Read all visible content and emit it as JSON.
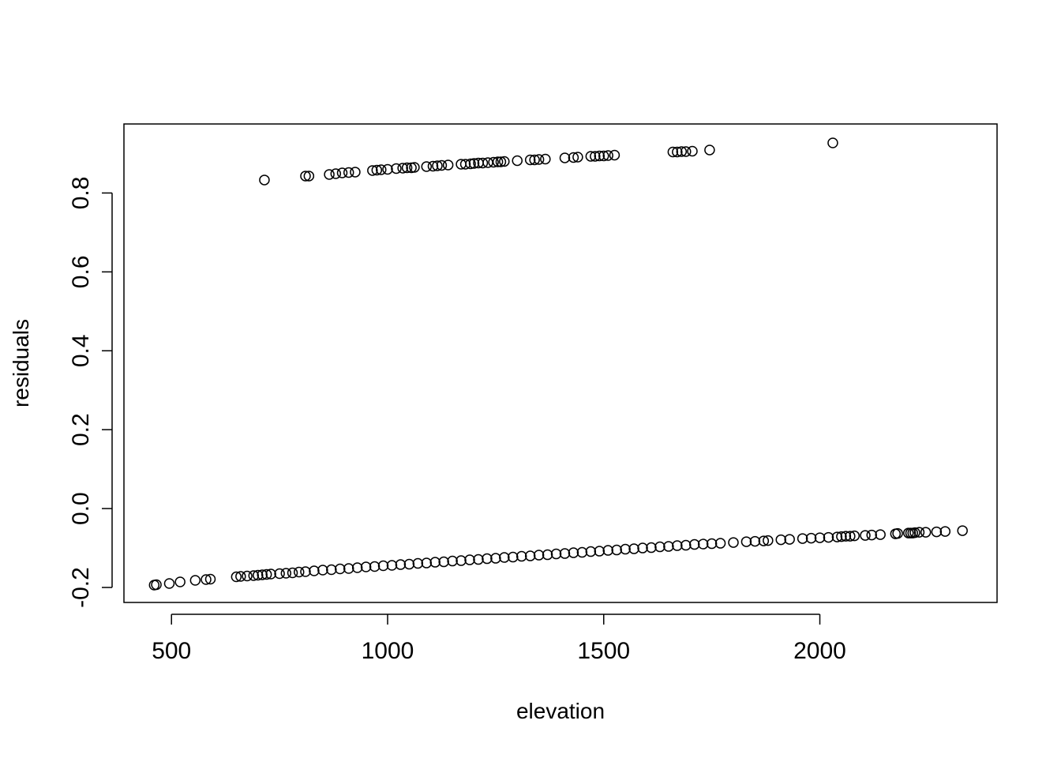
{
  "chart_data": {
    "type": "scatter",
    "title": "",
    "xlabel": "elevation",
    "ylabel": "residuals",
    "xlim": [
      390,
      2410
    ],
    "ylim": [
      -0.238,
      0.975
    ],
    "xticks": [
      500,
      1000,
      1500,
      2000
    ],
    "xtick_labels": [
      "500",
      "1000",
      "1500",
      "2000"
    ],
    "yticks": [
      -0.2,
      0.0,
      0.2,
      0.4,
      0.6,
      0.8
    ],
    "ytick_labels": [
      "-0.2",
      "0.0",
      "0.2",
      "0.4",
      "0.6",
      "0.8"
    ],
    "grid": false,
    "marker": "open-circle",
    "marker_color": "#000000",
    "series": [
      {
        "x": [
          715,
          810,
          818,
          865,
          880,
          895,
          910,
          925,
          965,
          975,
          985,
          1000,
          1020,
          1035,
          1045,
          1055,
          1062,
          1090,
          1105,
          1115,
          1125,
          1140,
          1170,
          1180,
          1192,
          1200,
          1210,
          1220,
          1232,
          1245,
          1255,
          1262,
          1270,
          1300,
          1330,
          1340,
          1350,
          1365,
          1410,
          1430,
          1440,
          1470,
          1480,
          1490,
          1500,
          1510,
          1525,
          1660,
          1670,
          1680,
          1690,
          1705,
          1745,
          2030
        ],
        "y": [
          0.833,
          0.843,
          0.843,
          0.847,
          0.849,
          0.851,
          0.852,
          0.853,
          0.857,
          0.858,
          0.859,
          0.86,
          0.862,
          0.863,
          0.864,
          0.864,
          0.865,
          0.867,
          0.868,
          0.869,
          0.87,
          0.871,
          0.873,
          0.873,
          0.874,
          0.875,
          0.876,
          0.876,
          0.877,
          0.878,
          0.879,
          0.879,
          0.88,
          0.882,
          0.884,
          0.884,
          0.885,
          0.886,
          0.889,
          0.89,
          0.891,
          0.893,
          0.893,
          0.894,
          0.894,
          0.895,
          0.896,
          0.904,
          0.904,
          0.905,
          0.905,
          0.906,
          0.909,
          0.927
        ]
      },
      {
        "x": [
          460,
          465,
          495,
          520,
          555,
          580,
          590,
          650,
          660,
          675,
          690,
          700,
          710,
          720,
          730,
          750,
          765,
          780,
          795,
          810,
          830,
          850,
          870,
          890,
          910,
          930,
          950,
          970,
          990,
          1010,
          1030,
          1050,
          1070,
          1090,
          1110,
          1130,
          1150,
          1170,
          1190,
          1210,
          1230,
          1250,
          1270,
          1290,
          1310,
          1330,
          1350,
          1370,
          1390,
          1410,
          1430,
          1450,
          1470,
          1490,
          1510,
          1530,
          1550,
          1570,
          1590,
          1610,
          1630,
          1650,
          1670,
          1690,
          1710,
          1730,
          1750,
          1770,
          1800,
          1830,
          1850,
          1870,
          1880,
          1910,
          1930,
          1960,
          1980,
          2000,
          2020,
          2040,
          2050,
          2060,
          2070,
          2080,
          2105,
          2120,
          2140,
          2175,
          2180,
          2205,
          2210,
          2215,
          2220,
          2230,
          2245,
          2270,
          2290,
          2330
        ],
        "y": [
          -0.194,
          -0.193,
          -0.19,
          -0.186,
          -0.182,
          -0.18,
          -0.179,
          -0.173,
          -0.172,
          -0.171,
          -0.17,
          -0.169,
          -0.168,
          -0.167,
          -0.166,
          -0.165,
          -0.164,
          -0.163,
          -0.161,
          -0.16,
          -0.158,
          -0.156,
          -0.155,
          -0.153,
          -0.152,
          -0.15,
          -0.148,
          -0.147,
          -0.145,
          -0.144,
          -0.142,
          -0.141,
          -0.139,
          -0.138,
          -0.136,
          -0.135,
          -0.133,
          -0.132,
          -0.13,
          -0.129,
          -0.127,
          -0.126,
          -0.124,
          -0.123,
          -0.121,
          -0.12,
          -0.118,
          -0.117,
          -0.115,
          -0.114,
          -0.112,
          -0.111,
          -0.109,
          -0.108,
          -0.106,
          -0.105,
          -0.103,
          -0.102,
          -0.1,
          -0.099,
          -0.097,
          -0.096,
          -0.094,
          -0.093,
          -0.091,
          -0.09,
          -0.089,
          -0.088,
          -0.086,
          -0.084,
          -0.083,
          -0.082,
          -0.081,
          -0.079,
          -0.078,
          -0.076,
          -0.075,
          -0.074,
          -0.073,
          -0.072,
          -0.071,
          -0.07,
          -0.07,
          -0.069,
          -0.068,
          -0.067,
          -0.066,
          -0.064,
          -0.063,
          -0.062,
          -0.062,
          -0.062,
          -0.061,
          -0.06,
          -0.06,
          -0.059,
          -0.058,
          -0.056
        ]
      }
    ]
  }
}
